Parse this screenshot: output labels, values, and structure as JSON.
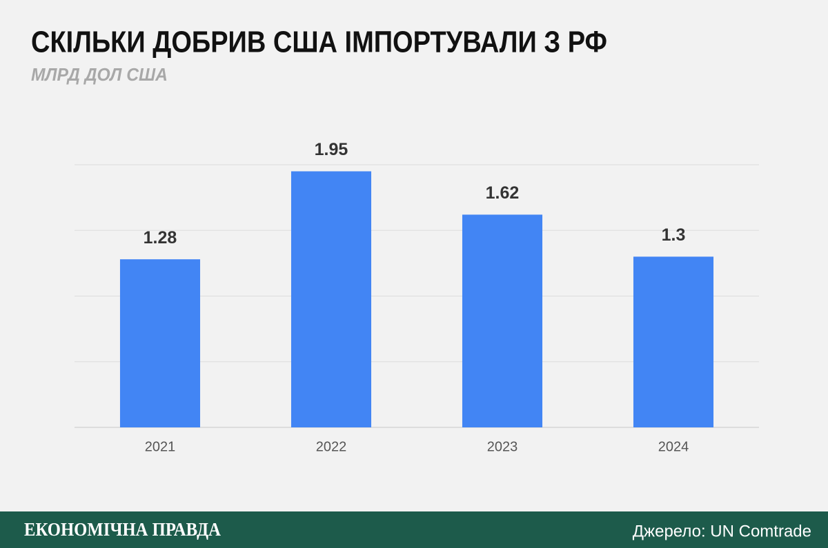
{
  "chart_data": {
    "type": "bar",
    "title": "СКІЛЬКИ ДОБРИВ США ІМПОРТУВАЛИ З РФ",
    "subtitle": "МЛРД ДОЛ США",
    "categories": [
      "2021",
      "2022",
      "2023",
      "2024"
    ],
    "values": [
      1.28,
      1.95,
      1.62,
      1.3
    ],
    "color": "#4285f4",
    "ylim": [
      0,
      2
    ],
    "yticks": [
      0,
      0.5,
      1,
      1.5,
      2
    ],
    "grid": true
  },
  "footer": {
    "brand": "ЕКОНОМІЧНА ПРАВДА",
    "source": "Джерело: UN Comtrade"
  }
}
